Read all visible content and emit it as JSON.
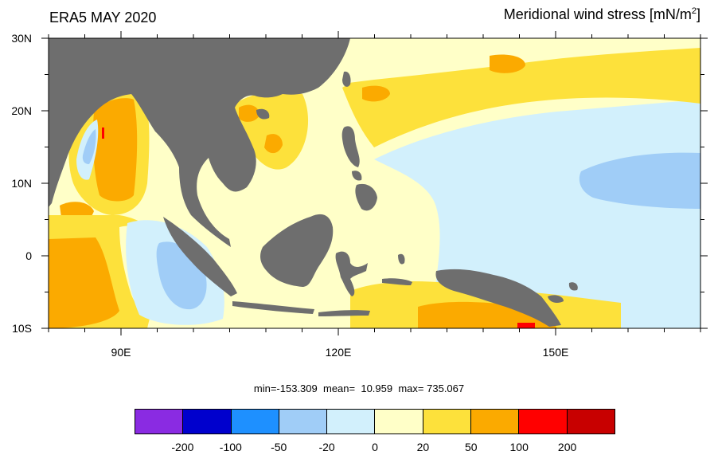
{
  "title_left": "ERA5 MAY 2020",
  "title_right_main": "Meridional wind stress [mN/m",
  "title_right_sup": "2",
  "title_right_close": "]",
  "lat_labels": [
    "30N",
    "20N",
    "10N",
    "0",
    "10S"
  ],
  "lon_labels": [
    "90E",
    "120E",
    "150E"
  ],
  "stats": {
    "min_label": "min=",
    "min": "-153.309",
    "mean_label": "mean=",
    "mean": "10.959",
    "max_label": "max=",
    "max": "735.067"
  },
  "colorbar": {
    "colors": [
      "#8a2be2",
      "#0000cd",
      "#1e90ff",
      "#a0cdf7",
      "#d2f0fc",
      "#ffffc8",
      "#fde13b",
      "#fbaa00",
      "#ff0000",
      "#c80000"
    ],
    "labels": [
      "-200",
      "-100",
      "-50",
      "-20",
      "0",
      "20",
      "50",
      "100",
      "200"
    ]
  },
  "map": {
    "lon_range": [
      80,
      170
    ],
    "lat_range": [
      -10,
      30
    ],
    "land_color": "#6e6e6e"
  }
}
